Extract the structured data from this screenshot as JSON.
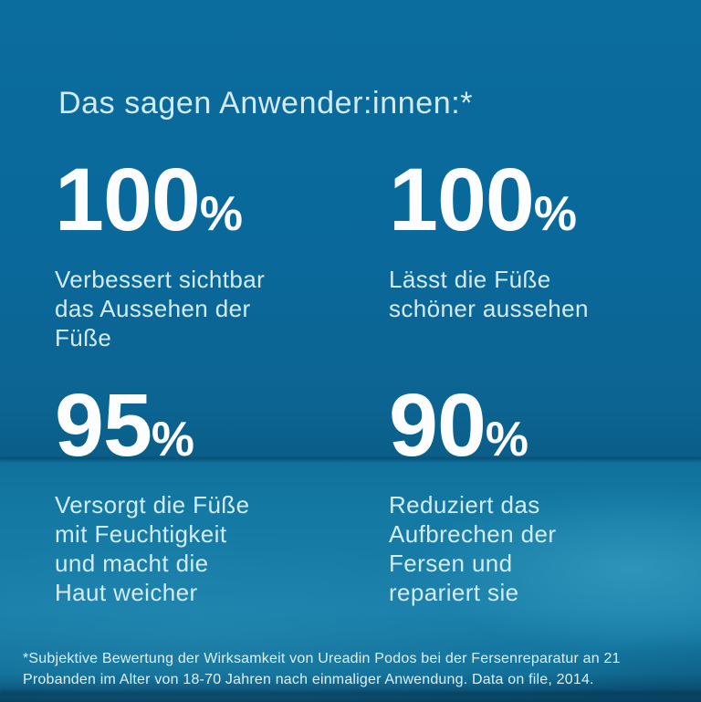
{
  "title": "Das sagen Anwender:innen:*",
  "stats": [
    {
      "value": "100",
      "unit": "%",
      "description": "Verbessert sichtbar\ndas Aussehen der\nFüße"
    },
    {
      "value": "100",
      "unit": "%",
      "description": "Lässt die Füße\nschöner aussehen"
    },
    {
      "value": "95",
      "unit": "%",
      "description": "Versorgt die Füße\nmit Feuchtigkeit\nund macht die\nHaut weicher"
    },
    {
      "value": "90",
      "unit": "%",
      "description": "Reduziert das\nAufbrechen der\nFersen und\nrepariert sie"
    }
  ],
  "footnote": "*Subjektive Bewertung der Wirksamkeit von Ureadin Podos bei der Fersenreparatur an 21\nProbanden im Alter von 18-70 Jahren nach einmaliger Anwendung. Data on file, 2014.",
  "colors": {
    "background_top": "#0a6a9c",
    "background_bottom": "#1a80aa",
    "text_primary": "#fbfdfe",
    "text_secondary": "#d3ebf5"
  }
}
